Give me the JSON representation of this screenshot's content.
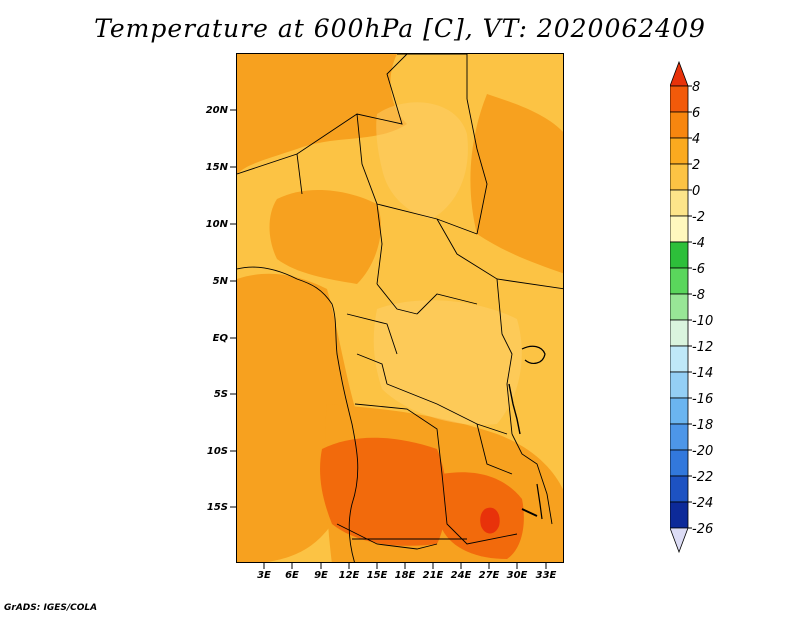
{
  "title": "Temperature at 600hPa [C], VT: 2020062409",
  "footer": "GrADS: IGES/COLA",
  "map": {
    "lat_labels": [
      "20N",
      "15N",
      "10N",
      "5N",
      "EQ",
      "5S",
      "10S",
      "15S"
    ],
    "lon_labels": [
      "3E",
      "6E",
      "9E",
      "12E",
      "15E",
      "18E",
      "21E",
      "24E",
      "27E",
      "30E",
      "33E"
    ]
  },
  "colorbar": {
    "levels": [
      "8",
      "6",
      "4",
      "2",
      "0",
      "-2",
      "-4",
      "-6",
      "-8",
      "-10",
      "-12",
      "-14",
      "-16",
      "-18",
      "-20",
      "-22",
      "-24",
      "-26"
    ],
    "colors": [
      "#e8320a",
      "#f25a0a",
      "#f7860f",
      "#fbaa1f",
      "#fcc344",
      "#fde58a",
      "#fff8be",
      "#2dbf3a",
      "#5ad65c",
      "#98e696",
      "#daf4de",
      "#bfe8f8",
      "#94cff5",
      "#6bb5f0",
      "#4d96e8",
      "#3278dc",
      "#1d52c2",
      "#0d2a99",
      "#10107a"
    ],
    "end_under_color": "#dcdcf5"
  }
}
